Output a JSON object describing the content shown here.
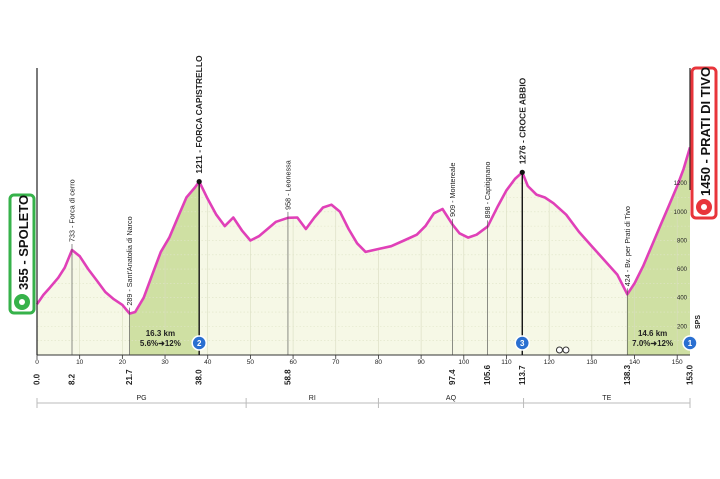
{
  "start": {
    "elevation": "355",
    "name": "SPOLETO",
    "separator": " - "
  },
  "finish": {
    "elevation": "1450",
    "name": "PRATI DI TIVO",
    "separator": " - "
  },
  "chart_data": {
    "type": "area",
    "xlim": [
      0,
      153
    ],
    "ylim": [
      0,
      2200
    ],
    "axis_ticks": [
      0,
      10,
      20,
      30,
      40,
      50,
      60,
      70,
      80,
      90,
      100,
      110,
      120,
      130,
      140,
      150
    ],
    "right_axis_ticks": [
      200,
      400,
      600,
      800,
      1000,
      1200
    ],
    "profile": [
      [
        0,
        355
      ],
      [
        1.5,
        420
      ],
      [
        3,
        470
      ],
      [
        5,
        540
      ],
      [
        6.5,
        610
      ],
      [
        8.2,
        733
      ],
      [
        10,
        690
      ],
      [
        12,
        600
      ],
      [
        14,
        520
      ],
      [
        16,
        440
      ],
      [
        18,
        390
      ],
      [
        20,
        350
      ],
      [
        21.7,
        289
      ],
      [
        23,
        300
      ],
      [
        25,
        400
      ],
      [
        27,
        560
      ],
      [
        29,
        720
      ],
      [
        31,
        820
      ],
      [
        33,
        960
      ],
      [
        35,
        1100
      ],
      [
        37,
        1170
      ],
      [
        38,
        1211
      ],
      [
        40,
        1090
      ],
      [
        42,
        980
      ],
      [
        44,
        900
      ],
      [
        46,
        960
      ],
      [
        48,
        870
      ],
      [
        50,
        800
      ],
      [
        52,
        830
      ],
      [
        54,
        880
      ],
      [
        56,
        930
      ],
      [
        58.8,
        958
      ],
      [
        61,
        960
      ],
      [
        63,
        880
      ],
      [
        65,
        960
      ],
      [
        67,
        1030
      ],
      [
        69,
        1050
      ],
      [
        71,
        1000
      ],
      [
        73,
        880
      ],
      [
        75,
        780
      ],
      [
        77,
        720
      ],
      [
        80,
        740
      ],
      [
        83,
        760
      ],
      [
        86,
        800
      ],
      [
        89,
        840
      ],
      [
        91,
        900
      ],
      [
        93,
        990
      ],
      [
        95,
        1020
      ],
      [
        97.4,
        909
      ],
      [
        99,
        850
      ],
      [
        101,
        820
      ],
      [
        103,
        840
      ],
      [
        105.6,
        898
      ],
      [
        108,
        1040
      ],
      [
        110,
        1150
      ],
      [
        112,
        1230
      ],
      [
        113.7,
        1276
      ],
      [
        115,
        1180
      ],
      [
        117,
        1120
      ],
      [
        119,
        1100
      ],
      [
        121,
        1060
      ],
      [
        124,
        980
      ],
      [
        127,
        860
      ],
      [
        130,
        760
      ],
      [
        133,
        660
      ],
      [
        136,
        560
      ],
      [
        138.3,
        424
      ],
      [
        140,
        500
      ],
      [
        142,
        620
      ],
      [
        144,
        760
      ],
      [
        146,
        900
      ],
      [
        148,
        1040
      ],
      [
        150,
        1180
      ],
      [
        151.5,
        1300
      ],
      [
        153,
        1450
      ]
    ],
    "waypoints": [
      {
        "km": 8.2,
        "label": "733 - Forca di cerro"
      },
      {
        "km": 21.7,
        "label": "289 - Sant'Anatolia di Narco"
      },
      {
        "km": 58.8,
        "label": "958 - Leonessa"
      },
      {
        "km": 97.4,
        "label": "909 - Montereale"
      },
      {
        "km": 105.6,
        "label": "898 - Capitignano"
      },
      {
        "km": 138.3,
        "label": "424 - Bv. per Prati di Tivo"
      }
    ],
    "summits": [
      {
        "km": 38.0,
        "label": "1211 - FORCA CAPISTRELLO",
        "category": "2"
      },
      {
        "km": 113.7,
        "label": "1276 - CROCE ABBIO",
        "category": "3"
      }
    ],
    "climbs": [
      {
        "from": 21.7,
        "to": 38.0,
        "length": "16.3 km",
        "gradient": "5.6%",
        "max": "12%"
      },
      {
        "from": 138.3,
        "to": 153.0,
        "length": "14.6 km",
        "gradient": "7.0%",
        "max": "12%"
      }
    ],
    "finish_category": "1",
    "gpm_arrow": "➜",
    "km_labels": [
      "0.0",
      "8.2",
      "21.7",
      "38.0",
      "58.8",
      "97.4",
      "105.6",
      "113.7",
      "138.3",
      "153.0"
    ],
    "bonus_km": 123,
    "sprint_mark": "SPS",
    "regions": [
      {
        "from": 0,
        "to": 49,
        "label": "PG"
      },
      {
        "from": 49,
        "to": 80,
        "label": "RI"
      },
      {
        "from": 80,
        "to": 114,
        "label": "AQ"
      },
      {
        "from": 114,
        "to": 153,
        "label": "TE"
      }
    ],
    "colors": {
      "profile_line": "#e040b8",
      "area_fill": "#f6f8e6",
      "climb_fill": "#cfe0a3",
      "start_green": "#36b24a",
      "finish_red": "#e8353b",
      "category_blue": "#2a6fd1"
    }
  }
}
